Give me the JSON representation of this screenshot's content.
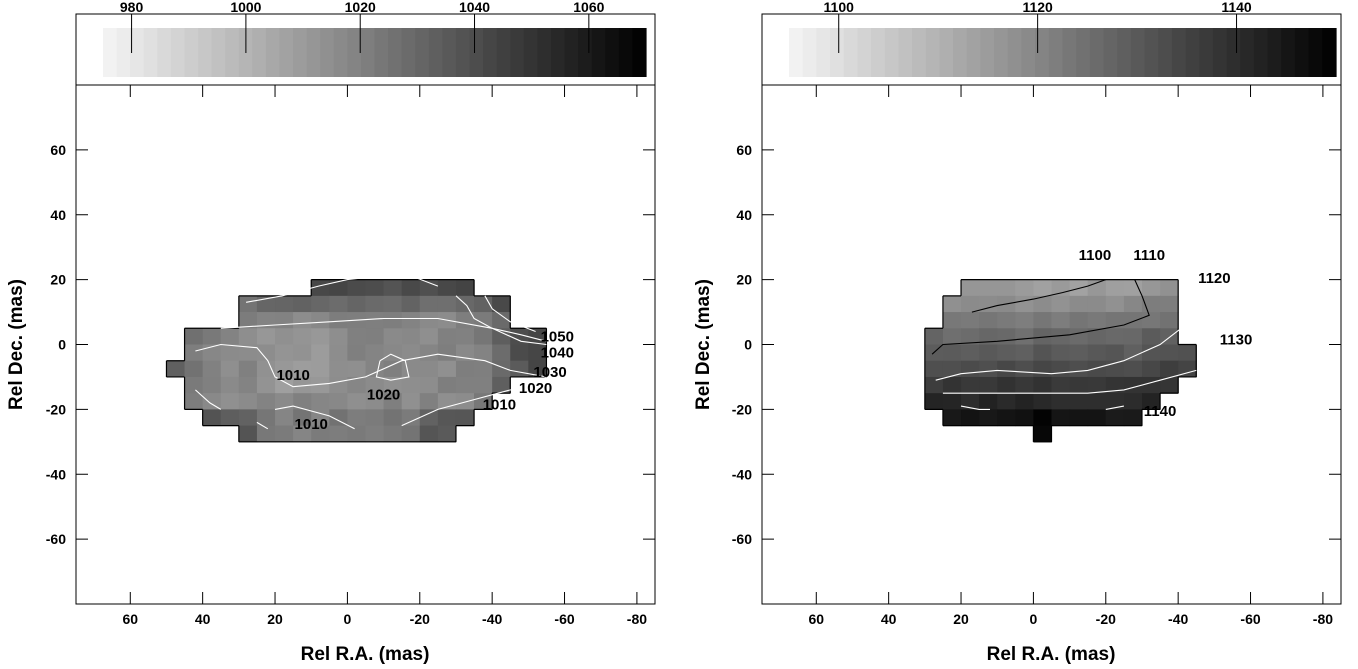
{
  "chart_data": [
    {
      "type": "heatmap",
      "xlabel": "Rel R.A. (mas)",
      "ylabel": "Rel Dec. (mas)",
      "xlim": [
        75,
        -85
      ],
      "ylim": [
        -80,
        80
      ],
      "x_ticks": [
        60,
        40,
        20,
        0,
        -20,
        -40,
        -60,
        -80
      ],
      "y_ticks": [
        60,
        40,
        20,
        0,
        -20,
        -40,
        -60
      ],
      "colorbar": {
        "min": 975,
        "max": 1070,
        "ticks": [
          980,
          1000,
          1020,
          1040,
          1060
        ],
        "colormap": "white-to-black"
      },
      "contour_levels": [
        1010,
        1020,
        1030,
        1040,
        1050
      ],
      "contour_labels": [
        {
          "text": "1010",
          "x": 15,
          "y": -11
        },
        {
          "text": "1020",
          "x": -10,
          "y": -17
        },
        {
          "text": "1010",
          "x": 10,
          "y": -26
        },
        {
          "text": "1050",
          "x": -58,
          "y": 1
        },
        {
          "text": "1040",
          "x": -58,
          "y": -4
        },
        {
          "text": "1030",
          "x": -56,
          "y": -10
        },
        {
          "text": "1020",
          "x": -52,
          "y": -15
        },
        {
          "text": "1010",
          "x": -42,
          "y": -20
        }
      ],
      "region_rows": [
        {
          "dec": 20,
          "ra_from": 10,
          "ra_to": -35
        },
        {
          "dec": 15,
          "ra_from": 30,
          "ra_to": -45
        },
        {
          "dec": 10,
          "ra_from": 30,
          "ra_to": -45
        },
        {
          "dec": 5,
          "ra_from": 45,
          "ra_to": -55
        },
        {
          "dec": 0,
          "ra_from": 45,
          "ra_to": -55
        },
        {
          "dec": -5,
          "ra_from": 50,
          "ra_to": -55
        },
        {
          "dec": -10,
          "ra_from": 45,
          "ra_to": -45
        },
        {
          "dec": -15,
          "ra_from": 45,
          "ra_to": -40
        },
        {
          "dec": -20,
          "ra_from": 40,
          "ra_to": -35
        },
        {
          "dec": -25,
          "ra_from": 30,
          "ra_to": -30
        }
      ]
    },
    {
      "type": "heatmap",
      "xlabel": "Rel R.A. (mas)",
      "ylabel": "Rel Dec. (mas)",
      "xlim": [
        75,
        -85
      ],
      "ylim": [
        -80,
        80
      ],
      "x_ticks": [
        60,
        40,
        20,
        0,
        -20,
        -40,
        -60,
        -80
      ],
      "y_ticks": [
        60,
        40,
        20,
        0,
        -20,
        -40,
        -60
      ],
      "colorbar": {
        "min": 1095,
        "max": 1150,
        "ticks": [
          1100,
          1120,
          1140
        ],
        "colormap": "white-to-black"
      },
      "contour_levels": [
        1100,
        1110,
        1120,
        1130,
        1140
      ],
      "contour_labels": [
        {
          "text": "1100",
          "x": -17,
          "y": 26
        },
        {
          "text": "1110",
          "x": -32,
          "y": 26
        },
        {
          "text": "1120",
          "x": -50,
          "y": 19
        },
        {
          "text": "1130",
          "x": -56,
          "y": 0
        },
        {
          "text": "1140",
          "x": -35,
          "y": -22
        }
      ],
      "region_rows": [
        {
          "dec": 20,
          "ra_from": 20,
          "ra_to": -40
        },
        {
          "dec": 15,
          "ra_from": 25,
          "ra_to": -40
        },
        {
          "dec": 10,
          "ra_from": 25,
          "ra_to": -40
        },
        {
          "dec": 5,
          "ra_from": 30,
          "ra_to": -40
        },
        {
          "dec": 0,
          "ra_from": 30,
          "ra_to": -45
        },
        {
          "dec": -5,
          "ra_from": 30,
          "ra_to": -45
        },
        {
          "dec": -10,
          "ra_from": 30,
          "ra_to": -40
        },
        {
          "dec": -15,
          "ra_from": 30,
          "ra_to": -35
        },
        {
          "dec": -20,
          "ra_from": 25,
          "ra_to": -30
        },
        {
          "dec": -25,
          "ra_from": 0,
          "ra_to": -5
        }
      ]
    }
  ]
}
